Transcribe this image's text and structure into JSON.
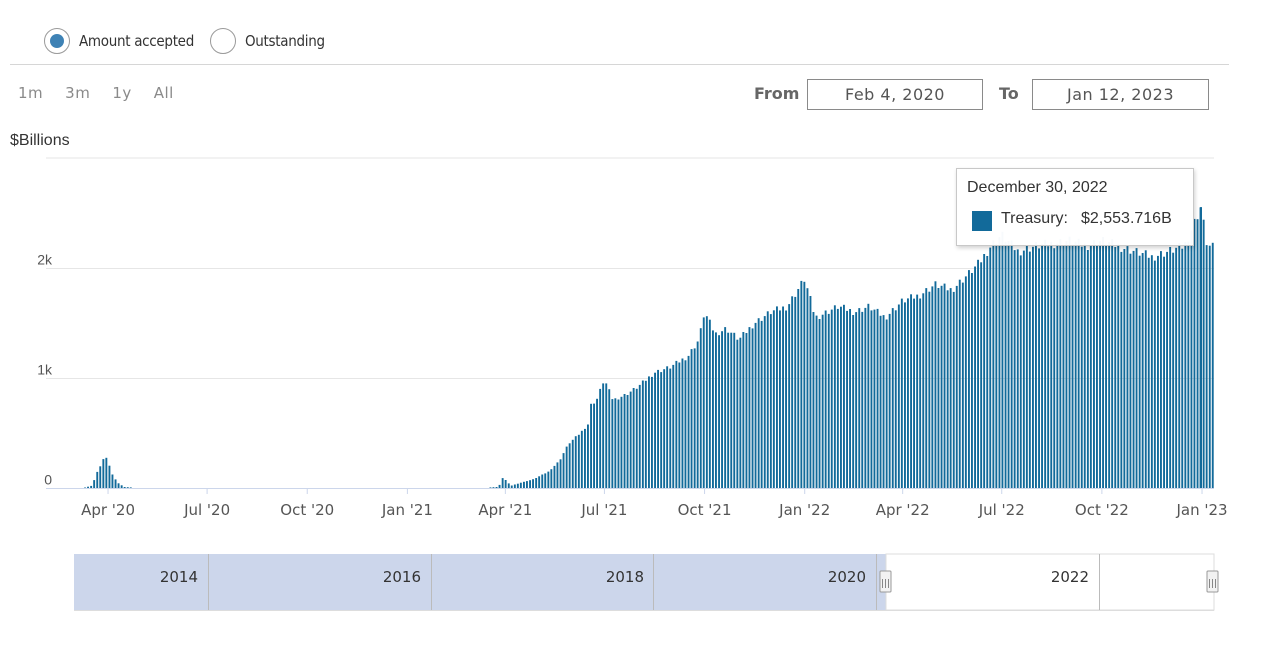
{
  "measure_toggle": {
    "options": [
      {
        "label": "Amount accepted",
        "selected": true
      },
      {
        "label": "Outstanding",
        "selected": false
      }
    ],
    "selected_color": "#3e82b5"
  },
  "range_buttons": [
    "1m",
    "3m",
    "1y",
    "All"
  ],
  "date_range": {
    "from_label": "From",
    "from_value": "Feb 4, 2020",
    "to_label": "To",
    "to_value": "Jan 12, 2023"
  },
  "tooltip": {
    "date": "December 30, 2022",
    "series": "Treasury:",
    "value": "$2,553.716B"
  },
  "colors": {
    "series": "#126a9a",
    "navigator_fill": "#ccd6eb",
    "grid": "#e6e6e6",
    "axis_text": "#555555"
  },
  "chart_data": {
    "type": "bar",
    "ylabel": "$Billions",
    "ylim": [
      0,
      3000
    ],
    "y_ticks": [
      {
        "value": 0,
        "label": "0"
      },
      {
        "value": 1000,
        "label": "1k"
      },
      {
        "value": 2000,
        "label": "2k"
      }
    ],
    "x_range": [
      "2020-02-04",
      "2023-01-12"
    ],
    "x_ticks": [
      {
        "date": "2020-04-01",
        "label": "Apr '20"
      },
      {
        "date": "2020-07-01",
        "label": "Jul '20"
      },
      {
        "date": "2020-10-01",
        "label": "Oct '20"
      },
      {
        "date": "2021-01-01",
        "label": "Jan '21"
      },
      {
        "date": "2021-04-01",
        "label": "Apr '21"
      },
      {
        "date": "2021-07-01",
        "label": "Jul '21"
      },
      {
        "date": "2021-10-01",
        "label": "Oct '21"
      },
      {
        "date": "2022-01-01",
        "label": "Jan '22"
      },
      {
        "date": "2022-04-01",
        "label": "Apr '22"
      },
      {
        "date": "2022-07-01",
        "label": "Jul '22"
      },
      {
        "date": "2022-10-01",
        "label": "Oct '22"
      },
      {
        "date": "2023-01-01",
        "label": "Jan '23"
      }
    ],
    "series": [
      {
        "name": "Treasury",
        "points": [
          [
            "2020-03-10",
            5
          ],
          [
            "2020-03-16",
            20
          ],
          [
            "2020-03-18",
            60
          ],
          [
            "2020-03-20",
            120
          ],
          [
            "2020-03-24",
            200
          ],
          [
            "2020-03-26",
            260
          ],
          [
            "2020-03-30",
            270
          ],
          [
            "2020-04-01",
            220
          ],
          [
            "2020-04-03",
            140
          ],
          [
            "2020-04-07",
            80
          ],
          [
            "2020-04-10",
            40
          ],
          [
            "2020-04-15",
            10
          ],
          [
            "2020-04-21",
            5
          ],
          [
            "2021-03-17",
            5
          ],
          [
            "2021-03-25",
            10
          ],
          [
            "2021-03-29",
            100
          ],
          [
            "2021-04-05",
            20
          ],
          [
            "2021-04-15",
            50
          ],
          [
            "2021-04-26",
            80
          ],
          [
            "2021-05-10",
            150
          ],
          [
            "2021-05-20",
            250
          ],
          [
            "2021-05-28",
            400
          ],
          [
            "2021-06-08",
            500
          ],
          [
            "2021-06-15",
            580
          ],
          [
            "2021-06-17",
            750
          ],
          [
            "2021-06-23",
            800
          ],
          [
            "2021-06-30",
            990
          ],
          [
            "2021-07-08",
            800
          ],
          [
            "2021-07-20",
            850
          ],
          [
            "2021-07-31",
            920
          ],
          [
            "2021-08-15",
            1050
          ],
          [
            "2021-08-30",
            1100
          ],
          [
            "2021-09-15",
            1200
          ],
          [
            "2021-09-25",
            1350
          ],
          [
            "2021-09-30",
            1600
          ],
          [
            "2021-10-10",
            1400
          ],
          [
            "2021-10-20",
            1450
          ],
          [
            "2021-11-01",
            1350
          ],
          [
            "2021-11-15",
            1500
          ],
          [
            "2021-11-30",
            1600
          ],
          [
            "2021-12-15",
            1650
          ],
          [
            "2021-12-31",
            1900
          ],
          [
            "2022-01-10",
            1550
          ],
          [
            "2022-01-31",
            1650
          ],
          [
            "2022-02-15",
            1600
          ],
          [
            "2022-02-28",
            1650
          ],
          [
            "2022-03-15",
            1550
          ],
          [
            "2022-03-31",
            1700
          ],
          [
            "2022-04-15",
            1750
          ],
          [
            "2022-04-30",
            1850
          ],
          [
            "2022-05-15",
            1800
          ],
          [
            "2022-05-31",
            1950
          ],
          [
            "2022-06-10",
            2050
          ],
          [
            "2022-06-20",
            2200
          ],
          [
            "2022-06-30",
            2300
          ],
          [
            "2022-07-15",
            2150
          ],
          [
            "2022-07-31",
            2200
          ],
          [
            "2022-08-15",
            2220
          ],
          [
            "2022-08-31",
            2250
          ],
          [
            "2022-09-15",
            2200
          ],
          [
            "2022-09-30",
            2250
          ],
          [
            "2022-10-15",
            2200
          ],
          [
            "2022-10-31",
            2150
          ],
          [
            "2022-11-15",
            2100
          ],
          [
            "2022-11-30",
            2150
          ],
          [
            "2022-12-15",
            2200
          ],
          [
            "2022-12-30",
            2553.716
          ],
          [
            "2023-01-05",
            2200
          ],
          [
            "2023-01-12",
            2180
          ]
        ]
      }
    ]
  },
  "navigator": {
    "labels": [
      "2014",
      "2016",
      "2018",
      "2020",
      "2022"
    ],
    "handle_glyph": "|||"
  }
}
